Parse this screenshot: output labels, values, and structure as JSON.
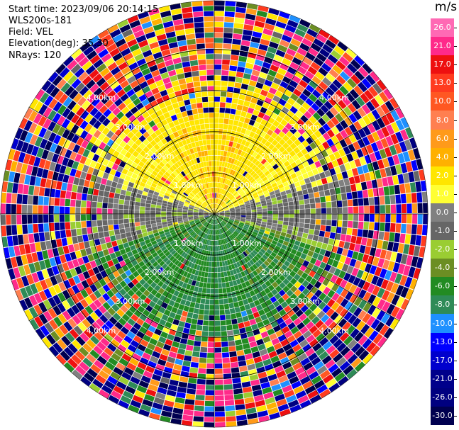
{
  "header": {
    "start_time": "Start time: 2023/09/06 20:14:15",
    "instrument": "WLS200s-181",
    "field": "Field: VEL",
    "elevation": "Elevation(deg): 35.30",
    "nrays": "NRays: 120"
  },
  "colorbar": {
    "unit": "m/s",
    "bins": [
      {
        "label": "26.0",
        "color": "#ff69b4"
      },
      {
        "label": "21.0",
        "color": "#ff2a8a"
      },
      {
        "label": "17.0",
        "color": "#ee1010"
      },
      {
        "label": "13.0",
        "color": "#ff3b1f"
      },
      {
        "label": "10.0",
        "color": "#ff5722"
      },
      {
        "label": "8.0",
        "color": "#ff7f50"
      },
      {
        "label": "6.0",
        "color": "#ff9a1a"
      },
      {
        "label": "4.0",
        "color": "#ffb000"
      },
      {
        "label": "2.0",
        "color": "#ffe600"
      },
      {
        "label": "1.0",
        "color": "#ffff33"
      },
      {
        "label": "0.0",
        "color": "#808080"
      },
      {
        "label": "-1.0",
        "color": "#666666"
      },
      {
        "label": "-2.0",
        "color": "#9acd32"
      },
      {
        "label": "-4.0",
        "color": "#6b8e23"
      },
      {
        "label": "-6.0",
        "color": "#228b22"
      },
      {
        "label": "-8.0",
        "color": "#2e8b57"
      },
      {
        "label": "-10.0",
        "color": "#1e90ff"
      },
      {
        "label": "-13.0",
        "color": "#0000ff"
      },
      {
        "label": "-17.0",
        "color": "#0000cd"
      },
      {
        "label": "-21.0",
        "color": "#00008b"
      },
      {
        "label": "-26.0",
        "color": "#000080"
      },
      {
        "label": "-30.0",
        "color": "#000050"
      }
    ]
  },
  "chart_data": {
    "type": "heatmap",
    "projection": "polar PPI",
    "field": "VEL",
    "units": "m/s",
    "range_rings_km": [
      1.0,
      2.0,
      3.0,
      4.0
    ],
    "ring_labels": [
      "1.00km",
      "2.00km",
      "3.00km",
      "4.00km"
    ],
    "rays": 120,
    "pattern": {
      "near_north": "positive 2–8 m/s (yellow/orange)",
      "near_south": "negative -2 to -8 m/s (greens)",
      "east_west_band": "near zero (grey)",
      "outer_range": "noise, all velocities"
    }
  }
}
